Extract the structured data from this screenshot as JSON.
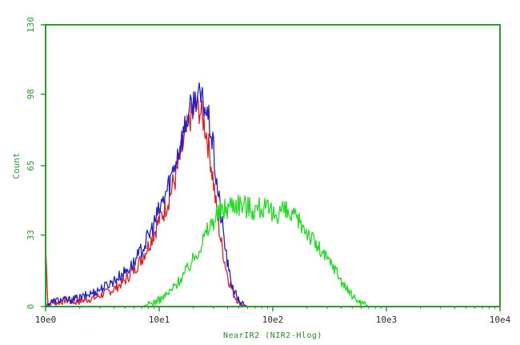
{
  "chart_data": {
    "type": "line",
    "title": "",
    "xlabel": "NearIR2 (NIR2-Hlog)",
    "ylabel": "Count",
    "x_scale": "log",
    "xlim": [
      1,
      10000
    ],
    "ylim": [
      0,
      130
    ],
    "x_ticks": [
      "10e0",
      "10e1",
      "10e2",
      "10e3",
      "10e4"
    ],
    "y_ticks": [
      "0",
      "33",
      "65",
      "98",
      "130"
    ],
    "grid": false,
    "legend": "none",
    "axis_color": "#2f9a2f",
    "series": [
      {
        "color": "#e02020",
        "x": [
          1.0,
          1.05,
          1.15,
          1.3,
          1.5,
          1.8,
          2.2,
          2.7,
          3.3,
          4.0,
          5.0,
          6.0,
          7.0,
          8.0,
          9.0,
          10.0,
          11.0,
          12.5,
          14.0,
          15.5,
          17.0,
          18.5,
          20.0,
          21.5,
          23.0,
          24.5,
          26.0,
          28.0,
          30.0,
          32.0,
          35.0,
          38.0,
          41.0,
          45.0,
          50.0,
          55.0,
          60.0,
          70.0,
          100.0
        ],
        "y": [
          28,
          1,
          2,
          2,
          3,
          2,
          3,
          4,
          6,
          8,
          12,
          17,
          22,
          28,
          34,
          40,
          44,
          52,
          60,
          70,
          78,
          86,
          90,
          92,
          90,
          86,
          80,
          70,
          58,
          44,
          30,
          20,
          12,
          6,
          2,
          1,
          0,
          0,
          0
        ]
      },
      {
        "color": "#2020d0",
        "x": [
          1.0,
          1.1,
          1.3,
          1.6,
          2.0,
          2.5,
          3.0,
          3.5,
          4.0,
          5.0,
          6.0,
          7.0,
          8.0,
          9.0,
          10.0,
          11.0,
          12.5,
          14.0,
          15.5,
          17.0,
          18.5,
          20.0,
          21.5,
          23.0,
          24.5,
          26.0,
          28.0,
          30.0,
          32.0,
          35.0,
          38.0,
          41.0,
          45.0,
          50.0,
          55.0,
          60.0,
          70.0,
          100.0
        ],
        "y": [
          0,
          2,
          3,
          3,
          4,
          6,
          8,
          10,
          12,
          16,
          20,
          26,
          32,
          38,
          44,
          50,
          58,
          68,
          76,
          84,
          90,
          94,
          98,
          96,
          94,
          90,
          84,
          72,
          58,
          42,
          28,
          16,
          8,
          3,
          1,
          0,
          0,
          0
        ]
      },
      {
        "color": "#22dd22",
        "x": [
          7.0,
          8.0,
          9.0,
          10.0,
          12.0,
          14.0,
          16.0,
          18.0,
          20.0,
          23.0,
          26.0,
          30.0,
          35.0,
          40.0,
          45.0,
          50.0,
          60.0,
          70.0,
          80.0,
          90.0,
          100.0,
          120.0,
          140.0,
          160.0,
          180.0,
          200.0,
          230.0,
          260.0,
          300.0,
          350.0,
          400.0,
          450.0,
          500.0,
          550.0,
          600.0,
          650.0,
          700.0
        ],
        "y": [
          0,
          1,
          2,
          3,
          6,
          10,
          14,
          18,
          22,
          28,
          34,
          40,
          44,
          46,
          48,
          48,
          46,
          45,
          46,
          44,
          42,
          45,
          42,
          40,
          38,
          35,
          30,
          26,
          22,
          18,
          12,
          8,
          5,
          3,
          2,
          1,
          0
        ]
      }
    ]
  }
}
